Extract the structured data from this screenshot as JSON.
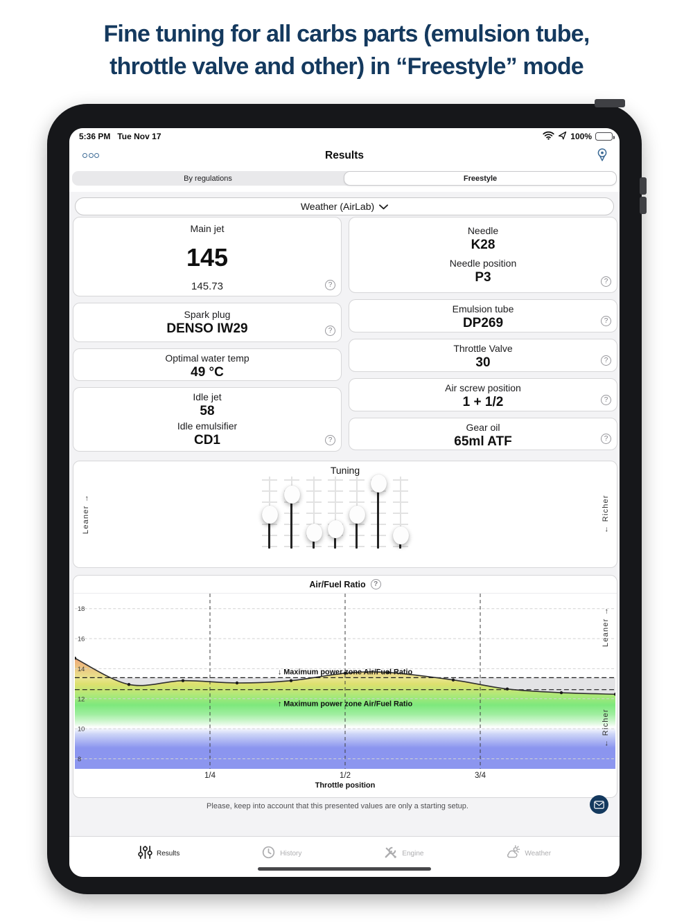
{
  "headline": {
    "line1": "Fine tuning for all carbs parts (emulsion tube,",
    "line2": "throttle valve and other) in “Freestyle” mode"
  },
  "status_bar": {
    "time": "5:36 PM",
    "date": "Tue Nov 17",
    "battery": "100%"
  },
  "nav": {
    "title": "Results",
    "left_icon": "more-icon",
    "right_icon": "location-pin-icon"
  },
  "segmented": {
    "options": [
      "By regulations",
      "Freestyle"
    ],
    "selected": "Freestyle"
  },
  "weather_button": {
    "label": "Weather (AirLab)",
    "icon": "chevron-down-icon"
  },
  "cards": {
    "left": [
      {
        "id": "main-jet",
        "title": "Main jet",
        "big": "145",
        "sub": "145.73",
        "help": true
      },
      {
        "id": "spark-plug",
        "pairs": [
          {
            "label": "Spark plug",
            "value": "DENSO IW29"
          }
        ],
        "help": true
      },
      {
        "id": "optimal-water-temp",
        "pairs": [
          {
            "label": "Optimal water temp",
            "value": "49 °C"
          }
        ],
        "help": false
      },
      {
        "id": "idle-jet",
        "pairs": [
          {
            "label": "Idle jet",
            "value": "58"
          },
          {
            "label": "Idle emulsifier",
            "value": "CD1"
          }
        ],
        "help": true
      }
    ],
    "right": [
      {
        "id": "needle",
        "pairs": [
          {
            "label": "Needle",
            "value": "K28"
          },
          {
            "label": "Needle position",
            "value": "P3"
          }
        ],
        "help": true
      },
      {
        "id": "emulsion-tube",
        "pairs": [
          {
            "label": "Emulsion tube",
            "value": "DP269"
          }
        ],
        "help": true
      },
      {
        "id": "throttle-valve",
        "pairs": [
          {
            "label": "Throttle Valve",
            "value": "30"
          }
        ],
        "help": true
      },
      {
        "id": "air-screw-position",
        "pairs": [
          {
            "label": "Air screw position",
            "value": "1 + 1/2"
          }
        ],
        "help": true
      },
      {
        "id": "gear-oil",
        "pairs": [
          {
            "label": "Gear oil",
            "value": "65ml ATF"
          }
        ],
        "help": true
      }
    ]
  },
  "tuning": {
    "title": "Tuning",
    "left_label": "Leaner →",
    "right_label": "← Richer",
    "slider_values_pct": [
      40,
      79,
      5,
      12,
      40,
      100,
      0
    ]
  },
  "chart_data": {
    "type": "line",
    "title": "Air/Fuel Ratio",
    "xlabel": "Throttle position",
    "x_ticks": [
      "1/4",
      "1/2",
      "3/4"
    ],
    "x_tick_positions": [
      0.25,
      0.5,
      0.75
    ],
    "y_ticks": [
      18,
      16,
      14,
      12,
      10,
      8
    ],
    "ylim_top": 19.0,
    "ylim_bottom": 7.33,
    "x": [
      0,
      0.1,
      0.2,
      0.3,
      0.4,
      0.5,
      0.58,
      0.7,
      0.8,
      0.9,
      1.0
    ],
    "afr_values": [
      14.7,
      12.95,
      13.2,
      13.05,
      13.2,
      13.7,
      13.75,
      13.25,
      12.65,
      12.4,
      12.3
    ],
    "power_zone_upper": 13.4,
    "power_zone_lower": 12.6,
    "annotation_above": "↓ Maximum power zone Air/Fuel Ratio",
    "annotation_below": "↑ Maximum power zone Air/Fuel Ratio",
    "right_label_top": "Leaner →",
    "right_label_bottom": "← Richer",
    "band_stops": [
      [
        0,
        "#eae594"
      ],
      [
        0.07,
        "#dde06e"
      ],
      [
        0.18,
        "#b2e878"
      ],
      [
        0.3,
        "#7ee87d"
      ],
      [
        0.4,
        "#9fee9f"
      ],
      [
        0.47,
        "#c9f5c9"
      ],
      [
        0.545,
        "#ffffff"
      ],
      [
        0.62,
        "#ccd4f7"
      ],
      [
        0.77,
        "#8b95ef"
      ],
      [
        1,
        "#8c96ef"
      ]
    ],
    "lean_stops": [
      [
        0,
        "#f09772"
      ],
      [
        1,
        "#e9e28c"
      ]
    ],
    "above_curve_color": "#e3e3e5",
    "grid": true,
    "legend": "none"
  },
  "footer": {
    "note": "Please, keep into account that this presented values are only a starting setup.",
    "mail_icon": "mail-icon"
  },
  "tab_bar": {
    "items": [
      {
        "label": "Results",
        "icon": "sliders-icon",
        "active": true
      },
      {
        "label": "History",
        "icon": "clock-icon",
        "active": false
      },
      {
        "label": "Engine",
        "icon": "tools-icon",
        "active": false
      },
      {
        "label": "Weather",
        "icon": "cloud-sun-icon",
        "active": false
      }
    ]
  },
  "colors": {
    "headline_navy": "#14395e",
    "accent_blue": "#3d6b96",
    "mail_button": "#14395e",
    "screen_bg": "#f3f3f5"
  }
}
